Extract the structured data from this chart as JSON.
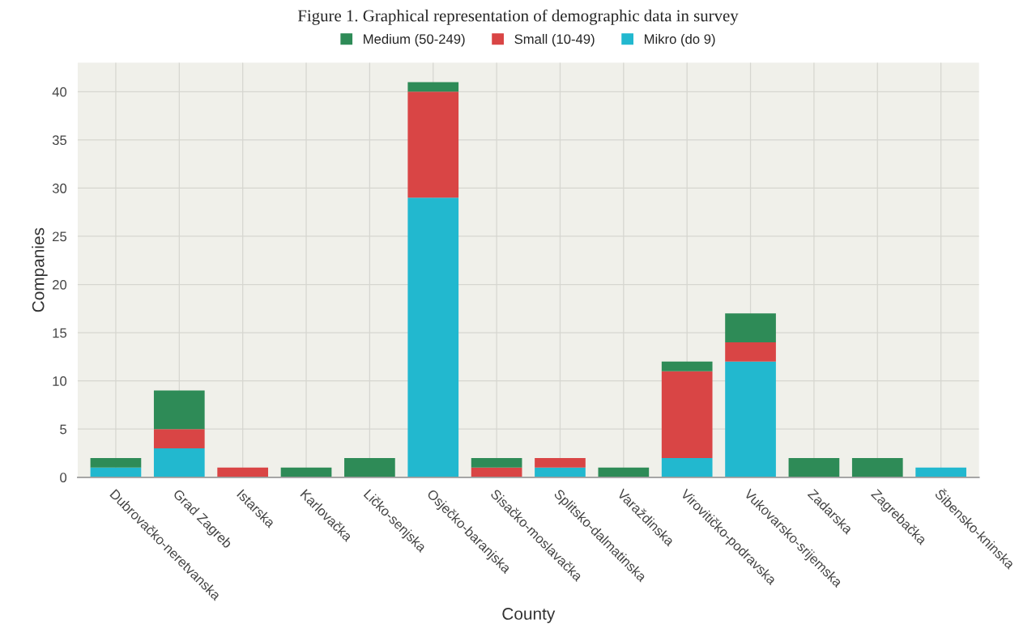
{
  "chart_data": {
    "type": "bar",
    "title": "Figure 1. Graphical representation of demographic data in survey",
    "xlabel": "County",
    "ylabel": "Companies",
    "categories": [
      "Dubrovačko-neretvanska",
      "Grad Zagreb",
      "Istarska",
      "Karlovačka",
      "Ličko-senjska",
      "Osječko-baranjska",
      "Sisačko-moslavačka",
      "Splitsko-dalmatinska",
      "Varaždinska",
      "Virovitičko-podravska",
      "Vukovarsko-srijemska",
      "Zadarska",
      "Zagrebačka",
      "Šibensko-kninska"
    ],
    "stacked": true,
    "series": [
      {
        "name": "Mikro (do 9)",
        "color": "#22b8cf",
        "values": [
          1,
          3,
          0,
          0,
          0,
          29,
          0,
          1,
          0,
          2,
          12,
          0,
          0,
          1
        ]
      },
      {
        "name": "Small (10-49)",
        "color": "#d94545",
        "values": [
          0,
          2,
          1,
          0,
          0,
          11,
          1,
          1,
          0,
          9,
          2,
          0,
          0,
          0
        ]
      },
      {
        "name": "Medium (50-249)",
        "color": "#2e8b57",
        "values": [
          1,
          4,
          0,
          1,
          2,
          1,
          1,
          0,
          1,
          1,
          3,
          2,
          2,
          0
        ]
      }
    ],
    "ylim": [
      0,
      43
    ],
    "yticks": [
      0,
      5,
      10,
      15,
      20,
      25,
      30,
      35,
      40
    ],
    "grid": true,
    "legend": "top"
  }
}
